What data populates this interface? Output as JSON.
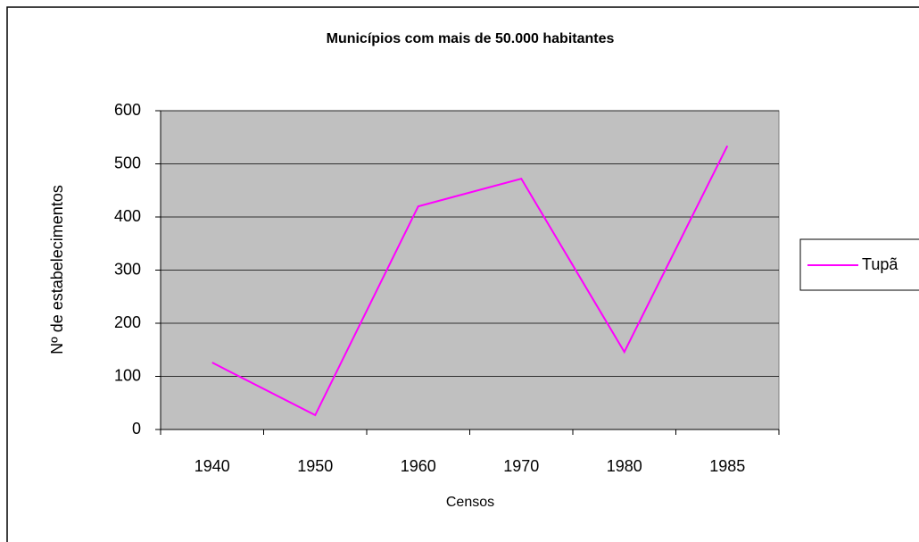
{
  "chart_data": {
    "type": "line",
    "title": "Municípios com mais de 50.000 habitantes",
    "x_label": "Censos",
    "y_label": "Nº de estabelecimentos",
    "categories": [
      "1940",
      "1950",
      "1960",
      "1970",
      "1980",
      "1985"
    ],
    "series": [
      {
        "name": "Tupã",
        "color": "#ff00ff",
        "values": [
          126,
          27,
          420,
          472,
          146,
          534
        ]
      }
    ],
    "ylim": [
      0,
      600
    ],
    "yticks": [
      0,
      100,
      200,
      300,
      400,
      500,
      600
    ],
    "grid": true,
    "legend": "right"
  }
}
